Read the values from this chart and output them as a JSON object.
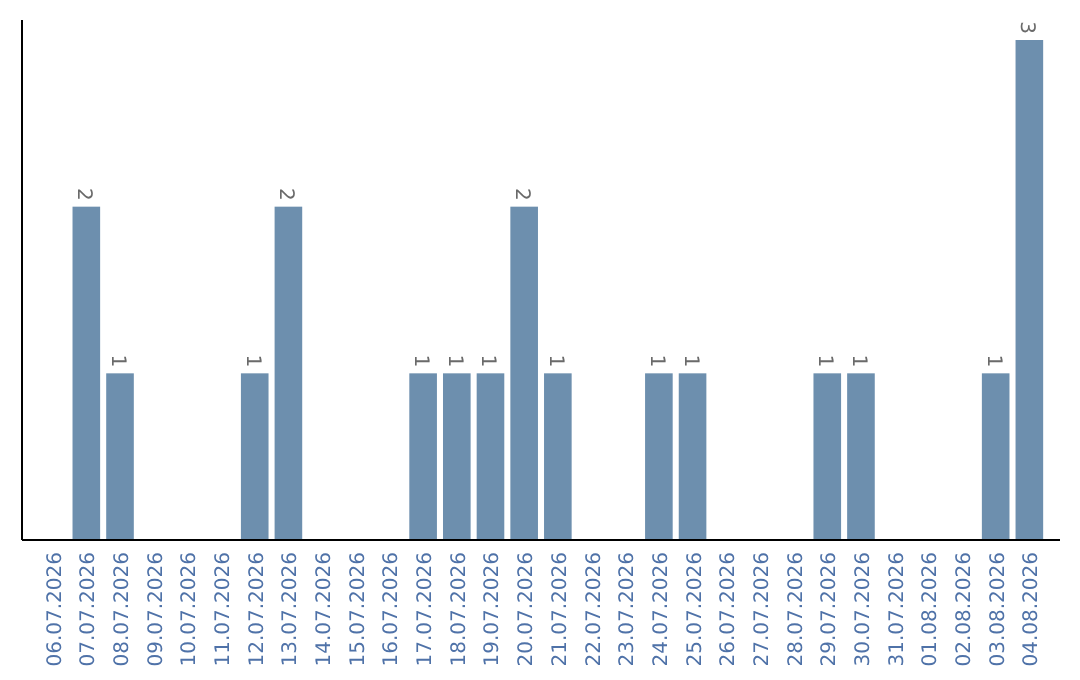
{
  "chart_data": {
    "type": "bar",
    "categories": [
      "06.07.2026",
      "07.07.2026",
      "08.07.2026",
      "09.07.2026",
      "10.07.2026",
      "11.07.2026",
      "12.07.2026",
      "13.07.2026",
      "14.07.2026",
      "15.07.2026",
      "16.07.2026",
      "17.07.2026",
      "18.07.2026",
      "19.07.2026",
      "20.07.2026",
      "21.07.2026",
      "22.07.2026",
      "23.07.2026",
      "24.07.2026",
      "25.07.2026",
      "26.07.2026",
      "27.07.2026",
      "28.07.2026",
      "29.07.2026",
      "30.07.2026",
      "31.07.2026",
      "01.08.2026",
      "02.08.2026",
      "03.08.2026",
      "04.08.2026"
    ],
    "values": [
      0,
      2,
      1,
      0,
      0,
      0,
      1,
      2,
      0,
      0,
      0,
      1,
      1,
      1,
      2,
      1,
      0,
      0,
      1,
      1,
      0,
      0,
      0,
      1,
      1,
      0,
      0,
      0,
      1,
      3
    ],
    "value_labels": [
      null,
      "2",
      "1",
      null,
      null,
      null,
      "1",
      "2",
      null,
      null,
      null,
      "1",
      "1",
      "1",
      "2",
      "1",
      null,
      null,
      "1",
      "1",
      null,
      null,
      null,
      "1",
      "1",
      null,
      null,
      null,
      "1",
      "3"
    ],
    "color": "#6d8fae",
    "tick_labels": "x"
  }
}
